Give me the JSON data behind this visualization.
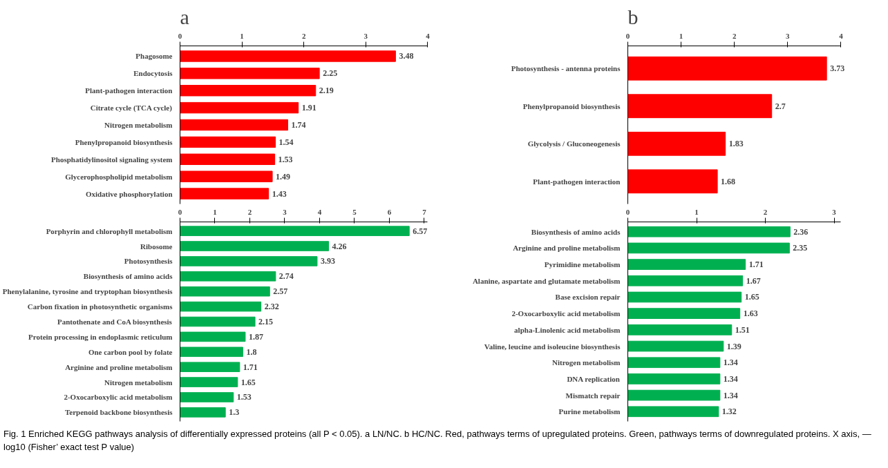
{
  "chart_data": [
    {
      "type": "bar",
      "orientation": "horizontal",
      "title": "a",
      "categories": [
        "Phagosome",
        "Endocytosis",
        "Plant-pathogen interaction",
        "Citrate cycle (TCA cycle)",
        "Nitrogen metabolism",
        "Phenylpropanoid biosynthesis",
        "Phosphatidylinositol signaling system",
        "Glycerophospholipid metabolism",
        "Oxidative phosphorylation"
      ],
      "values": [
        3.48,
        2.25,
        2.19,
        1.91,
        1.74,
        1.54,
        1.53,
        1.49,
        1.43
      ],
      "color": "#ff0000",
      "xlim": [
        0,
        4
      ],
      "xticks": [
        0,
        1,
        2,
        3,
        4
      ],
      "data_labels": true,
      "grid": false
    },
    {
      "type": "bar",
      "orientation": "horizontal",
      "categories": [
        "Porphyrin and chlorophyll metabolism",
        "Ribosome",
        "Photosynthesis",
        "Biosynthesis of amino acids",
        "Phenylalanine, tyrosine and tryptophan biosynthesis",
        "Carbon fixation in photosynthetic organisms",
        "Pantothenate and CoA biosynthesis",
        "Protein processing in endoplasmic reticulum",
        "One carbon pool by folate",
        "Arginine and proline metabolism",
        "Nitrogen metabolism",
        "2-Oxocarboxylic acid metabolism",
        "Terpenoid backbone biosynthesis"
      ],
      "values": [
        6.57,
        4.26,
        3.93,
        2.74,
        2.57,
        2.32,
        2.15,
        1.87,
        1.8,
        1.71,
        1.65,
        1.53,
        1.3
      ],
      "color": "#00b050",
      "xlim": [
        0,
        7.1
      ],
      "xticks": [
        0,
        1,
        2,
        3,
        4,
        5,
        6,
        7
      ],
      "data_labels": true,
      "grid": false
    },
    {
      "type": "bar",
      "orientation": "horizontal",
      "title": "b",
      "categories": [
        "Photosynthesis - antenna proteins",
        "Phenylpropanoid biosynthesis",
        "Glycolysis / Gluconeogenesis",
        "Plant-pathogen interaction"
      ],
      "values": [
        3.73,
        2.7,
        1.83,
        1.68
      ],
      "color": "#ff0000",
      "xlim": [
        0,
        4
      ],
      "xticks": [
        0,
        1,
        2,
        3,
        4
      ],
      "data_labels": true,
      "grid": false
    },
    {
      "type": "bar",
      "orientation": "horizontal",
      "categories": [
        "Biosynthesis of amino acids",
        "Arginine and proline metabolism",
        "Pyrimidine metabolism",
        "Alanine, aspartate and glutamate metabolism",
        "Base excision repair",
        "2-Oxocarboxylic acid metabolism",
        "alpha-Linolenic acid metabolism",
        "Valine, leucine and isoleucine biosynthesis",
        "Nitrogen metabolism",
        "DNA replication",
        "Mismatch repair",
        "Purine metabolism"
      ],
      "values": [
        2.36,
        2.35,
        1.71,
        1.67,
        1.65,
        1.63,
        1.51,
        1.39,
        1.34,
        1.34,
        1.34,
        1.32
      ],
      "color": "#00b050",
      "xlim": [
        0,
        3.1
      ],
      "xticks": [
        0,
        1,
        2,
        3
      ],
      "data_labels": true,
      "grid": false,
      "annotations": [
        "Fig. 1 Enriched KEGG pathways analysis of differentially expressed proteins (all P < 0.05). a LN/NC. b HC/NC. Red, pathways terms of upregulated proteins. Green, pathways terms of downregulated proteins. X axis, — log10 (Fisher’ exact test P value)"
      ]
    }
  ]
}
